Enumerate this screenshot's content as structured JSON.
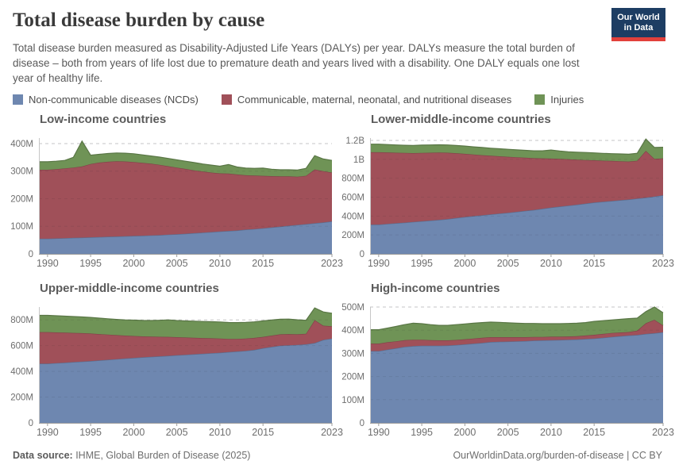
{
  "header": {
    "title": "Total disease burden by cause",
    "subtitle": "Total disease burden measured as Disability-Adjusted Life Years (DALYs) per year. DALYs measure the total burden of disease – both from years of life lost due to premature death and years lived with a disability. One DALY equals one lost year of healthy life.",
    "logo": {
      "line1": "Our World",
      "line2": "in Data",
      "bg_color": "#1d3d63",
      "bar_color": "#e2403b"
    }
  },
  "legend": [
    {
      "label": "Non-communicable diseases (NCDs)",
      "color": "#6e87b0"
    },
    {
      "label": "Communicable, maternal, neonatal, and nutritional diseases",
      "color": "#a05059"
    },
    {
      "label": "Injuries",
      "color": "#6f9356"
    }
  ],
  "footer": {
    "source_label": "Data source:",
    "source": " IHME, Global Burden of Disease (2025)",
    "right": "OurWorldinData.org/burden-of-disease | CC BY"
  },
  "chart_data": [
    {
      "id": "low-income",
      "type": "area",
      "stacked": true,
      "title": "Low-income countries",
      "values_unit": "million DALYs",
      "xlim": [
        1989,
        2023
      ],
      "ylim": [
        0,
        420
      ],
      "xticks": [
        1990,
        1995,
        2000,
        2005,
        2010,
        2015,
        2023
      ],
      "yticks": [
        {
          "v": 0,
          "label": "0"
        },
        {
          "v": 100,
          "label": "100M"
        },
        {
          "v": 200,
          "label": "200M"
        },
        {
          "v": 300,
          "label": "300M"
        },
        {
          "v": 400,
          "label": "400M"
        }
      ],
      "grid": "dashed-horizontal",
      "x": [
        1990,
        1991,
        1992,
        1993,
        1994,
        1995,
        1996,
        1997,
        1998,
        1999,
        2000,
        2001,
        2002,
        2003,
        2004,
        2005,
        2006,
        2007,
        2008,
        2009,
        2010,
        2011,
        2012,
        2013,
        2014,
        2015,
        2016,
        2017,
        2018,
        2019,
        2020,
        2021,
        2022,
        2023
      ],
      "series": [
        {
          "name": "Non-communicable diseases (NCDs)",
          "color": "#6e87b0",
          "values": [
            55,
            56,
            57,
            58,
            59,
            60,
            61,
            62,
            63,
            64,
            65,
            66,
            67,
            68,
            70,
            71,
            73,
            75,
            77,
            79,
            81,
            83,
            85,
            88,
            90,
            93,
            96,
            99,
            102,
            105,
            108,
            111,
            114,
            118
          ]
        },
        {
          "name": "Communicable, maternal, neonatal, and nutritional diseases",
          "color": "#a05059",
          "values": [
            250,
            251,
            253,
            255,
            258,
            266,
            270,
            272,
            273,
            271,
            268,
            264,
            260,
            255,
            248,
            242,
            235,
            228,
            222,
            216,
            211,
            208,
            203,
            197,
            194,
            190,
            186,
            182,
            179,
            175,
            175,
            195,
            186,
            177
          ]
        },
        {
          "name": "Injuries",
          "color": "#6f9356",
          "values": [
            29,
            29,
            29,
            37,
            92,
            32,
            30,
            30,
            30,
            30,
            30,
            29,
            28,
            28,
            28,
            28,
            28,
            28,
            27,
            27,
            26,
            33,
            27,
            26,
            26,
            28,
            25,
            24,
            24,
            24,
            27,
            50,
            44,
            44
          ]
        }
      ]
    },
    {
      "id": "lower-middle-income",
      "type": "area",
      "stacked": true,
      "title": "Lower-middle-income countries",
      "values_unit": "million DALYs",
      "xlim": [
        1989,
        2023
      ],
      "ylim": [
        0,
        1225
      ],
      "xticks": [
        1990,
        1995,
        2000,
        2005,
        2010,
        2015,
        2023
      ],
      "yticks": [
        {
          "v": 0,
          "label": "0"
        },
        {
          "v": 200,
          "label": "200M"
        },
        {
          "v": 400,
          "label": "400M"
        },
        {
          "v": 600,
          "label": "600M"
        },
        {
          "v": 800,
          "label": "800M"
        },
        {
          "v": 1000,
          "label": "1B"
        },
        {
          "v": 1200,
          "label": "1.2B"
        }
      ],
      "grid": "dashed-horizontal",
      "x": [
        1990,
        1991,
        1992,
        1993,
        1994,
        1995,
        1996,
        1997,
        1998,
        1999,
        2000,
        2001,
        2002,
        2003,
        2004,
        2005,
        2006,
        2007,
        2008,
        2009,
        2010,
        2011,
        2012,
        2013,
        2014,
        2015,
        2016,
        2017,
        2018,
        2019,
        2020,
        2021,
        2022,
        2023
      ],
      "series": [
        {
          "name": "Non-communicable diseases (NCDs)",
          "color": "#6e87b0",
          "values": [
            310,
            317,
            324,
            331,
            338,
            345,
            352,
            360,
            368,
            379,
            390,
            399,
            408,
            417,
            426,
            435,
            445,
            455,
            465,
            477,
            490,
            500,
            510,
            520,
            532,
            543,
            551,
            559,
            567,
            575,
            585,
            595,
            607,
            620
          ]
        },
        {
          "name": "Communicable, maternal, neonatal, and nutritional diseases",
          "color": "#a05059",
          "values": [
            765,
            756,
            746,
            737,
            728,
            723,
            718,
            712,
            702,
            686,
            668,
            652,
            636,
            621,
            606,
            592,
            577,
            562,
            547,
            533,
            518,
            504,
            490,
            476,
            461,
            447,
            435,
            424,
            413,
            402,
            400,
            495,
            398,
            390
          ]
        },
        {
          "name": "Injuries",
          "color": "#6f9356",
          "values": [
            85,
            83,
            82,
            81,
            81,
            82,
            82,
            82,
            82,
            81,
            82,
            81,
            81,
            80,
            80,
            79,
            78,
            78,
            78,
            80,
            90,
            83,
            80,
            80,
            79,
            78,
            77,
            77,
            77,
            77,
            79,
            125,
            120,
            118
          ]
        }
      ]
    },
    {
      "id": "upper-middle-income",
      "type": "area",
      "stacked": true,
      "title": "Upper-middle-income countries",
      "values_unit": "million DALYs",
      "xlim": [
        1989,
        2023
      ],
      "ylim": [
        0,
        900
      ],
      "xticks": [
        1990,
        1995,
        2000,
        2005,
        2010,
        2015,
        2023
      ],
      "yticks": [
        {
          "v": 0,
          "label": "0"
        },
        {
          "v": 200,
          "label": "200M"
        },
        {
          "v": 400,
          "label": "400M"
        },
        {
          "v": 600,
          "label": "600M"
        },
        {
          "v": 800,
          "label": "800M"
        }
      ],
      "grid": "dashed-horizontal",
      "x": [
        1990,
        1991,
        1992,
        1993,
        1994,
        1995,
        1996,
        1997,
        1998,
        1999,
        2000,
        2001,
        2002,
        2003,
        2004,
        2005,
        2006,
        2007,
        2008,
        2009,
        2010,
        2011,
        2012,
        2013,
        2014,
        2015,
        2016,
        2017,
        2018,
        2019,
        2020,
        2021,
        2022,
        2023
      ],
      "series": [
        {
          "name": "Non-communicable diseases (NCDs)",
          "color": "#6e87b0",
          "values": [
            460,
            464,
            468,
            472,
            476,
            480,
            485,
            490,
            495,
            500,
            505,
            509,
            513,
            517,
            521,
            525,
            529,
            533,
            537,
            541,
            545,
            550,
            555,
            560,
            567,
            580,
            590,
            600,
            603,
            606,
            610,
            620,
            645,
            655
          ]
        },
        {
          "name": "Communicable, maternal, neonatal, and nutritional diseases",
          "color": "#a05059",
          "values": [
            245,
            239,
            233,
            227,
            221,
            214,
            205,
            196,
            187,
            178,
            170,
            163,
            157,
            152,
            147,
            141,
            134,
            128,
            122,
            116,
            110,
            102,
            97,
            95,
            93,
            88,
            88,
            88,
            87,
            82,
            82,
            178,
            110,
            95
          ]
        },
        {
          "name": "Injuries",
          "color": "#6f9356",
          "values": [
            130,
            129,
            128,
            127,
            126,
            125,
            124,
            123,
            122,
            122,
            123,
            124,
            125,
            128,
            132,
            129,
            129,
            129,
            129,
            129,
            129,
            128,
            127,
            126,
            125,
            124,
            121,
            117,
            116,
            113,
            105,
            95,
            107,
            102
          ]
        }
      ]
    },
    {
      "id": "high-income",
      "type": "area",
      "stacked": true,
      "title": "High-income countries",
      "values_unit": "million DALYs",
      "xlim": [
        1989,
        2023
      ],
      "ylim": [
        0,
        500
      ],
      "xticks": [
        1990,
        1995,
        2000,
        2005,
        2010,
        2015,
        2023
      ],
      "yticks": [
        {
          "v": 0,
          "label": "0"
        },
        {
          "v": 100,
          "label": "100M"
        },
        {
          "v": 200,
          "label": "200M"
        },
        {
          "v": 300,
          "label": "300M"
        },
        {
          "v": 400,
          "label": "400M"
        },
        {
          "v": 500,
          "label": "500M"
        }
      ],
      "grid": "dashed-horizontal",
      "x": [
        1990,
        1991,
        1992,
        1993,
        1994,
        1995,
        1996,
        1997,
        1998,
        1999,
        2000,
        2001,
        2002,
        2003,
        2004,
        2005,
        2006,
        2007,
        2008,
        2009,
        2010,
        2011,
        2012,
        2013,
        2014,
        2015,
        2016,
        2017,
        2018,
        2019,
        2020,
        2021,
        2022,
        2023
      ],
      "series": [
        {
          "name": "Non-communicable diseases (NCDs)",
          "color": "#6e87b0",
          "values": [
            310,
            316,
            322,
            328,
            331,
            333,
            333,
            333,
            334,
            336,
            339,
            342,
            345,
            349,
            350,
            351,
            352,
            353,
            355,
            356,
            357,
            358,
            359,
            360,
            362,
            364,
            367,
            371,
            374,
            377,
            379,
            384,
            387,
            391
          ]
        },
        {
          "name": "Communicable, maternal, neonatal, and nutritional diseases",
          "color": "#a05059",
          "values": [
            32,
            32,
            30,
            29,
            28,
            26,
            24,
            23,
            22,
            22,
            22,
            22,
            22,
            21,
            20,
            19,
            18,
            17,
            16,
            15,
            15,
            14,
            14,
            14,
            15,
            16,
            17,
            17,
            16,
            15,
            19,
            46,
            58,
            30
          ]
        },
        {
          "name": "Injuries",
          "color": "#6f9356",
          "values": [
            60,
            61,
            64,
            67,
            71,
            69,
            67,
            65,
            65,
            66,
            66,
            66,
            66,
            65,
            64,
            62,
            60,
            59,
            58,
            57,
            56,
            56,
            56,
            56,
            56,
            58,
            57,
            56,
            57,
            58,
            54,
            50,
            55,
            54
          ]
        }
      ]
    }
  ]
}
